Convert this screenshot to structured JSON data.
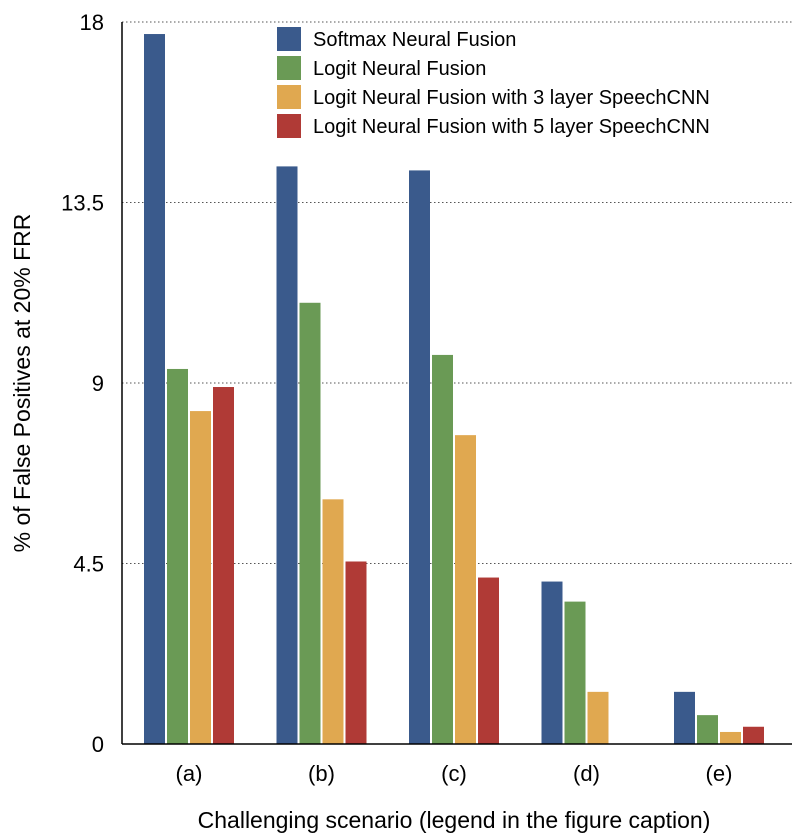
{
  "chart_data": {
    "type": "bar",
    "categories": [
      "(a)",
      "(b)",
      "(c)",
      "(d)",
      "(e)"
    ],
    "series": [
      {
        "name": "Softmax Neural Fusion",
        "color": "#3a5a8c",
        "values": [
          17.7,
          14.4,
          14.3,
          4.05,
          1.3
        ]
      },
      {
        "name": "Logit Neural Fusion",
        "color": "#6a9a55",
        "values": [
          9.35,
          11.0,
          9.7,
          3.55,
          0.72
        ]
      },
      {
        "name": "Logit Neural Fusion with 3 layer SpeechCNN",
        "color": "#e0a850",
        "values": [
          8.3,
          6.1,
          7.7,
          1.3,
          0.3
        ]
      },
      {
        "name": "Logit Neural Fusion with 5 layer SpeechCNN",
        "color": "#b03a36",
        "values": [
          8.9,
          4.55,
          4.15,
          null,
          0.43
        ]
      }
    ],
    "yticks": [
      "0",
      "4.5",
      "9",
      "13.5",
      "18"
    ],
    "ylim": [
      0,
      18
    ],
    "xlabel": "Challenging scenario (legend in the figure caption)",
    "ylabel": "% of False Positives at 20% FRR",
    "grid": "horizontal dotted",
    "legend_position": "top-center"
  }
}
